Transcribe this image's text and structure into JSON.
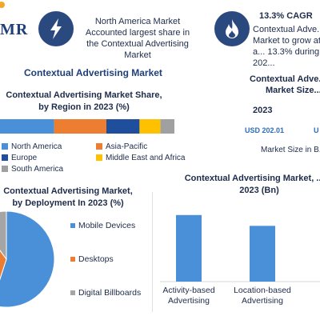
{
  "header": {
    "logo_text": "MR",
    "card1_text": "North America Market Accounted largest share in the Contextual Advertising Market",
    "card2_title": "13.3% CAGR",
    "card2_text": "Contextual Adve... Market to grow at a... 13.3% during 202..."
  },
  "main_title": "Contextual Advertising Market",
  "size_panel": {
    "title_line1": "Contextual Adve...",
    "title_line2": "Market Size...",
    "year": "2023",
    "value": "USD 202.01",
    "value2": "U",
    "footer": "Market Size in B..."
  },
  "colors": {
    "north_america": "#4a90d9",
    "europe": "#1f4e9c",
    "south_america": "#a0a0a0",
    "asia_pacific": "#ed7d31",
    "middle_east_africa": "#ffc000",
    "mobile_devices": "#4a90d9",
    "desktops": "#ed7d31",
    "digital_billboards": "#a5a5a5",
    "bars": "#4a90d9"
  },
  "chart_data": [
    {
      "type": "bar",
      "orientation": "horizontal-stacked",
      "title": "Contextual Advertising Market Share, by Region in 2023 (%)",
      "series": [
        {
          "name": "North America",
          "values": [
            31
          ]
        },
        {
          "name": "Asia-Pacific",
          "values": [
            30
          ]
        },
        {
          "name": "Europe",
          "values": [
            19
          ]
        },
        {
          "name": "Middle East and Africa",
          "values": [
            12
          ]
        },
        {
          "name": "South America",
          "values": [
            8
          ]
        }
      ],
      "legend": [
        {
          "name": "North America",
          "color": "#4a90d9"
        },
        {
          "name": "Asia-Pacific",
          "color": "#ed7d31"
        },
        {
          "name": "Europe",
          "color": "#1f4e9c"
        },
        {
          "name": "Middle East and Africa",
          "color": "#ffc000"
        },
        {
          "name": "South America",
          "color": "#a0a0a0"
        }
      ],
      "xlim": [
        0,
        100
      ]
    },
    {
      "type": "pie",
      "title": "Contextual Advertising Market, by Deployment In 2023 (%)",
      "slices": [
        {
          "name": "Mobile Devices",
          "value": 55
        },
        {
          "name": "Desktops",
          "value": 35
        },
        {
          "name": "Digital Billboards",
          "value": 10
        }
      ]
    },
    {
      "type": "bar",
      "title": "Contextual Advertising Market, ... in 2023 (Bn)",
      "categories": [
        "Activity-based Advertising",
        "Location-based Advertising"
      ],
      "values": [
        80,
        67
      ],
      "ylim": [
        0,
        100
      ]
    }
  ]
}
